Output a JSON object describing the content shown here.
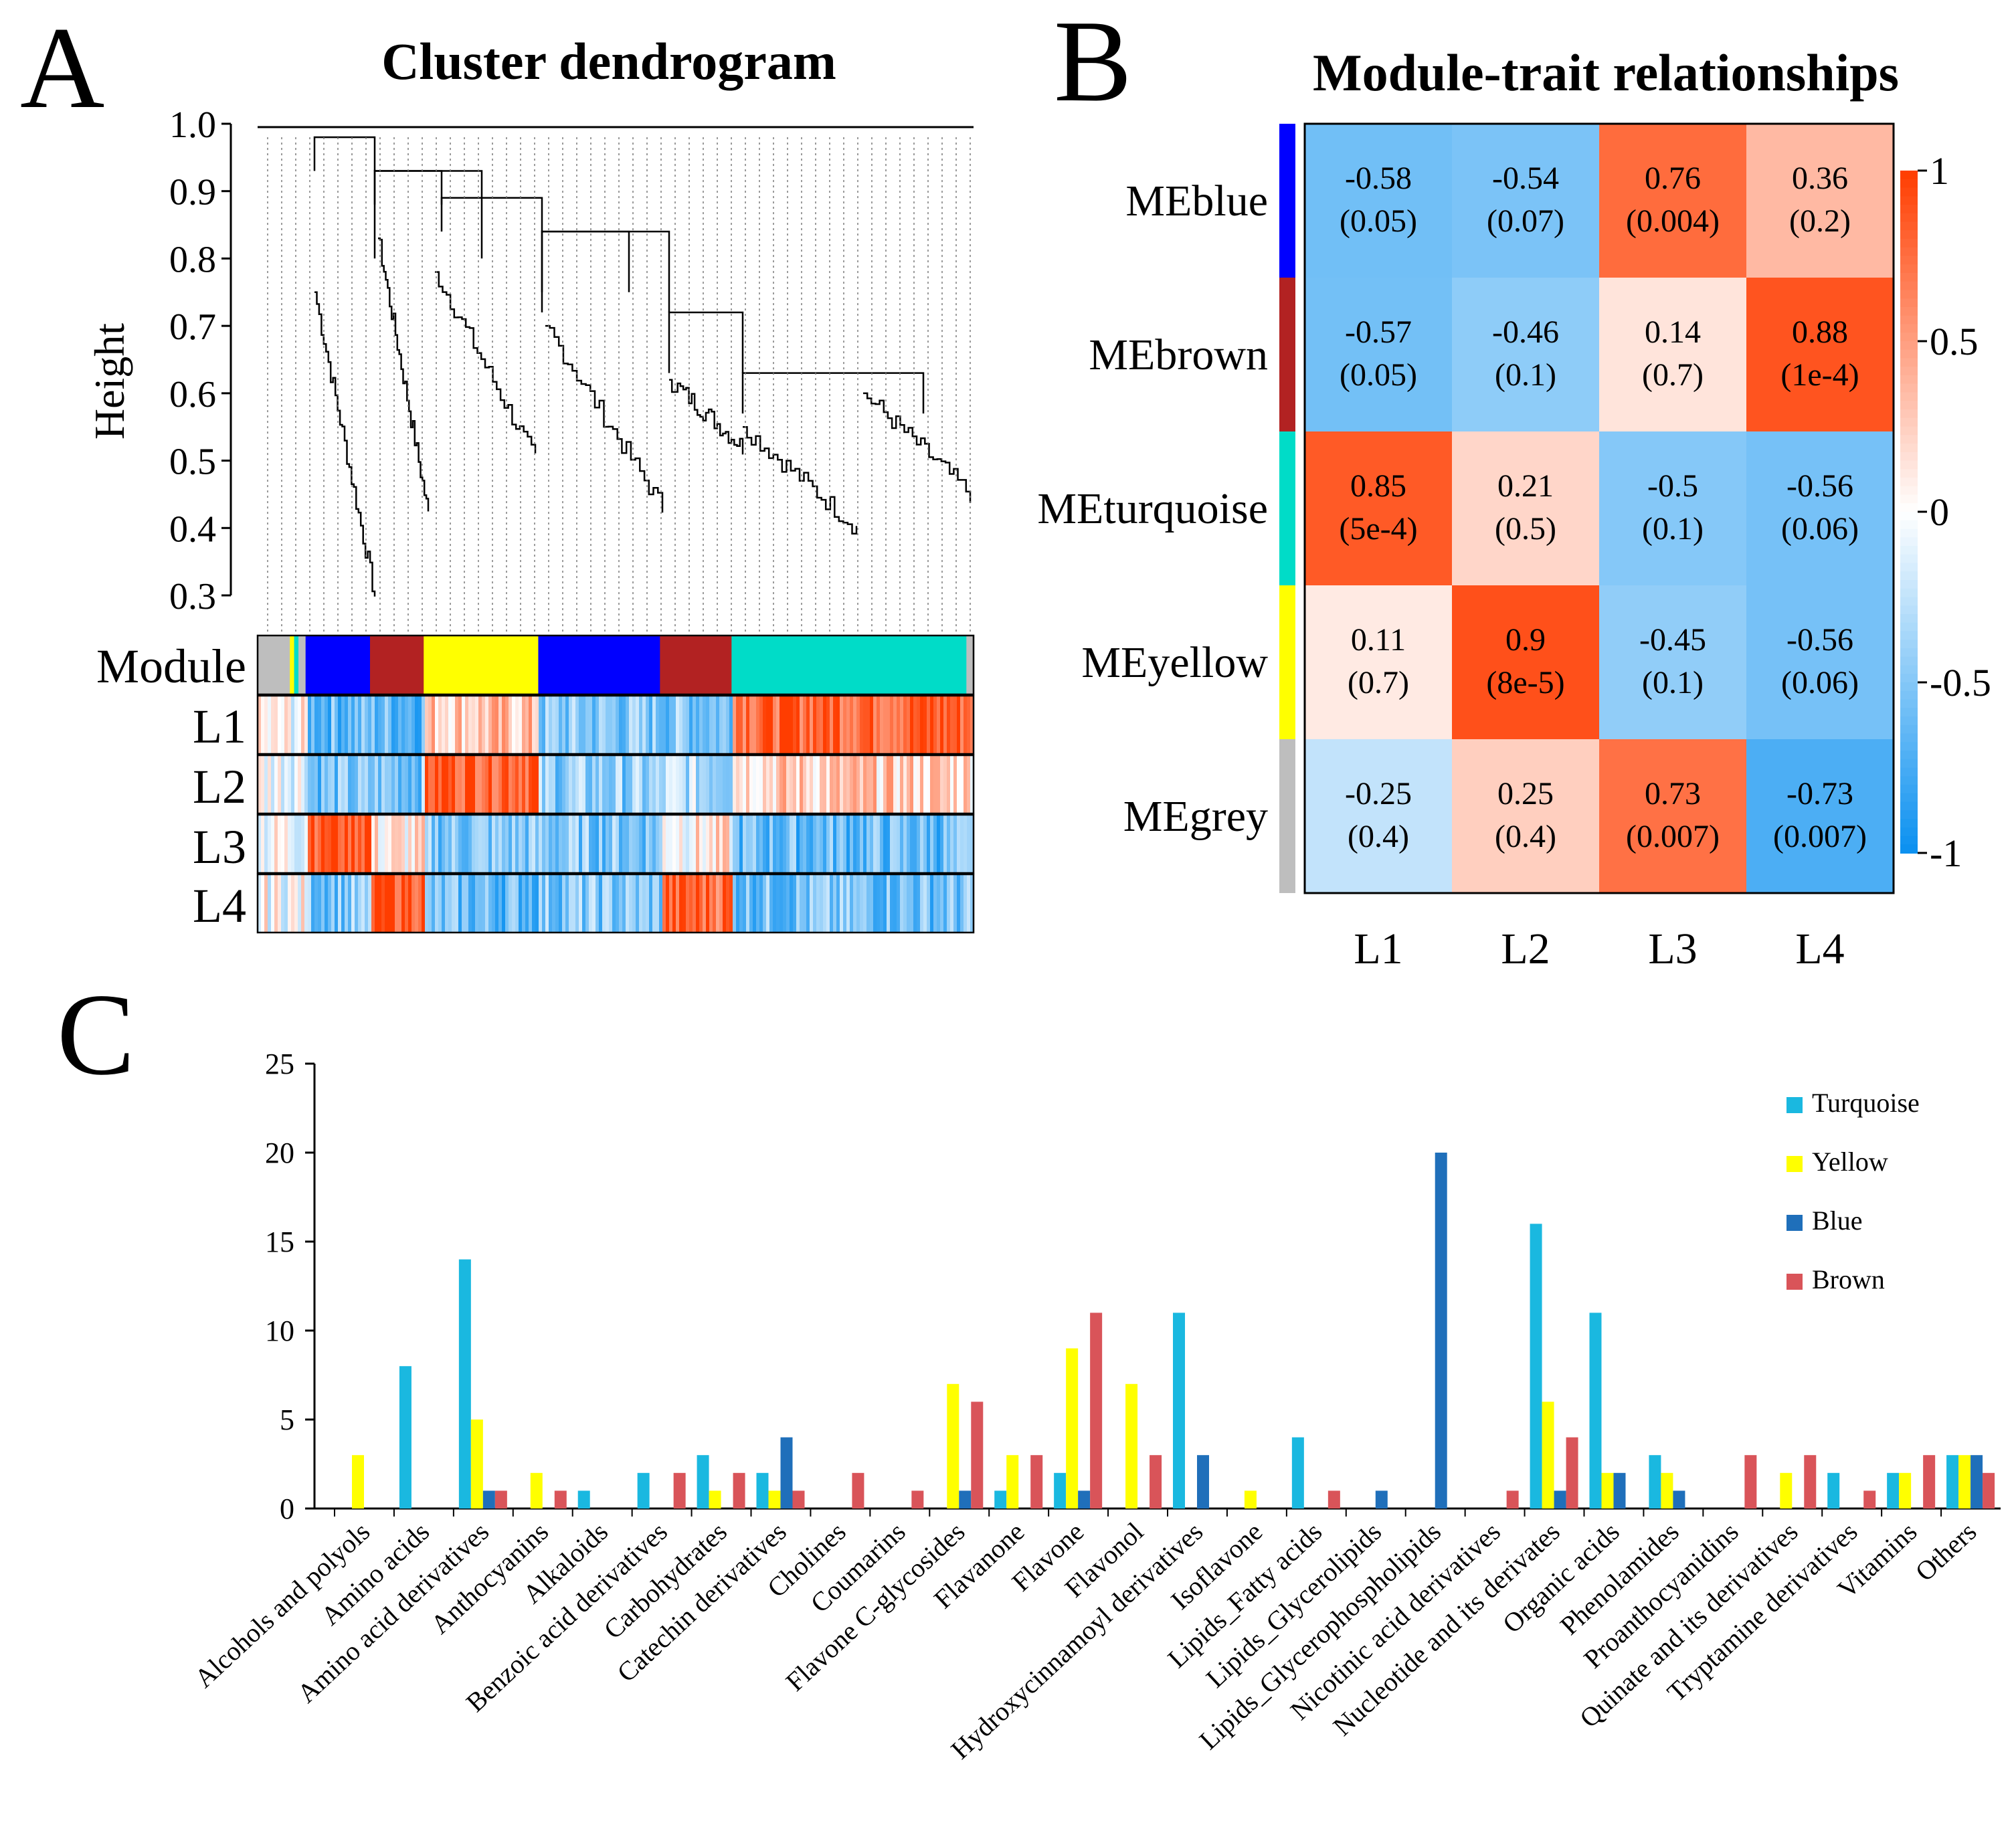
{
  "panels": {
    "a": {
      "letter": "A",
      "title": "Cluster dendrogram",
      "ylabel": "Height",
      "yticks": [
        "1.0",
        "0.9",
        "0.8",
        "0.7",
        "0.6",
        "0.5",
        "0.4",
        "0.3"
      ],
      "row_labels": [
        "Module",
        "L1",
        "L2",
        "L3",
        "L4"
      ]
    },
    "b": {
      "letter": "B",
      "title": "Module-trait relationships"
    },
    "c": {
      "letter": "C"
    }
  },
  "colors": {
    "turquoise": "#1ab8e0",
    "yellow": "#ffff00",
    "blue": "#1f6fba",
    "brown": "#d95459",
    "module_grey": "#bebebe",
    "module_blue": "#0000ff",
    "module_brown": "#b22222",
    "module_yellow": "#ffff00",
    "module_turquoise": "#00dcc8"
  },
  "chart_data": [
    {
      "id": "module-trait-heatmap",
      "type": "heatmap",
      "title": "Module-trait relationships",
      "rows": [
        "MEblue",
        "MEbrown",
        "MEturquoise",
        "MEyellow",
        "MEgrey"
      ],
      "row_colors": [
        "#0000ff",
        "#b22222",
        "#00dcc8",
        "#ffff00",
        "#bebebe"
      ],
      "columns": [
        "L1",
        "L2",
        "L3",
        "L4"
      ],
      "values": [
        [
          -0.58,
          -0.54,
          0.76,
          0.36
        ],
        [
          -0.57,
          -0.46,
          0.14,
          0.88
        ],
        [
          0.85,
          0.21,
          -0.5,
          -0.56
        ],
        [
          0.11,
          0.9,
          -0.45,
          -0.56
        ],
        [
          -0.25,
          0.25,
          0.73,
          -0.73
        ]
      ],
      "pvalues": [
        [
          "(0.05)",
          "(0.07)",
          "(0.004)",
          "(0.2)"
        ],
        [
          "(0.05)",
          "(0.1)",
          "(0.7)",
          "(1e-4)"
        ],
        [
          "(5e-4)",
          "(0.5)",
          "(0.1)",
          "(0.06)"
        ],
        [
          "(0.7)",
          "(8e-5)",
          "(0.1)",
          "(0.06)"
        ],
        [
          "(0.4)",
          "(0.4)",
          "(0.007)",
          "(0.007)"
        ]
      ],
      "value_labels": [
        [
          "-0.58",
          "-0.54",
          "0.76",
          "0.36"
        ],
        [
          "-0.57",
          "-0.46",
          "0.14",
          "0.88"
        ],
        [
          "0.85",
          "0.21",
          "-0.5",
          "-0.56"
        ],
        [
          "0.11",
          "0.9",
          "-0.45",
          "-0.56"
        ],
        [
          "-0.25",
          "0.25",
          "0.73",
          "-0.73"
        ]
      ],
      "colorbar": {
        "range": [
          -1,
          1
        ],
        "ticks": [
          1,
          0.5,
          0,
          -0.5,
          -1
        ],
        "tick_labels": [
          "1",
          "0.5",
          "0",
          "-0.5",
          "-1"
        ]
      }
    },
    {
      "id": "metabolite-class-bars",
      "type": "bar",
      "ylim": [
        0,
        25
      ],
      "yticks": [
        0,
        5,
        10,
        15,
        20,
        25
      ],
      "ytick_labels": [
        "0",
        "5",
        "10",
        "15",
        "20",
        "25"
      ],
      "legend_position": "top-right",
      "categories": [
        "Alcohols and polyols",
        "Amino acids",
        "Amino acid derivatives",
        "Anthocyanins",
        "Alkaloids",
        "Benzoic acid derivatives",
        "Carbohydrates",
        "Catechin derivatives",
        "Cholines",
        "Coumarins",
        "Flavone C-glycosides",
        "Flavanone",
        "Flavone",
        "Flavonol",
        "Hydroxycinnamoyl derivatives",
        "Isoflavone",
        "Lipids_Fatty acids",
        "Lipids_Glycerolipids",
        "Lipids_Glycerophospholipids",
        "Nicotinic acid derivatives",
        "Nucleotide and its derivates",
        "Organic acids",
        "Phenolamides",
        "Proanthocyanidins",
        "Quinate and its derivatives",
        "Tryptamine derivatives",
        "Vitamins",
        "Others"
      ],
      "series": [
        {
          "name": "Turquoise",
          "color": "#1ab8e0",
          "values": [
            0,
            8,
            14,
            0,
            1,
            2,
            3,
            2,
            0,
            0,
            0,
            1,
            2,
            0,
            11,
            0,
            4,
            0,
            0,
            0,
            16,
            11,
            3,
            0,
            0,
            2,
            2,
            3
          ]
        },
        {
          "name": "Yellow",
          "color": "#ffff00",
          "values": [
            3,
            0,
            5,
            2,
            0,
            0,
            1,
            1,
            0,
            0,
            7,
            3,
            9,
            7,
            0,
            1,
            0,
            0,
            0,
            0,
            6,
            2,
            2,
            0,
            2,
            0,
            2,
            3
          ]
        },
        {
          "name": "Blue",
          "color": "#1f6fba",
          "values": [
            0,
            0,
            1,
            0,
            0,
            0,
            0,
            4,
            0,
            0,
            1,
            0,
            1,
            0,
            3,
            0,
            0,
            1,
            20,
            0,
            1,
            2,
            1,
            0,
            0,
            0,
            0,
            3
          ]
        },
        {
          "name": "Brown",
          "color": "#d95459",
          "values": [
            0,
            0,
            1,
            1,
            0,
            2,
            2,
            1,
            2,
            1,
            6,
            3,
            11,
            3,
            0,
            0,
            1,
            0,
            0,
            1,
            4,
            0,
            0,
            3,
            3,
            1,
            3,
            2
          ]
        }
      ]
    }
  ]
}
